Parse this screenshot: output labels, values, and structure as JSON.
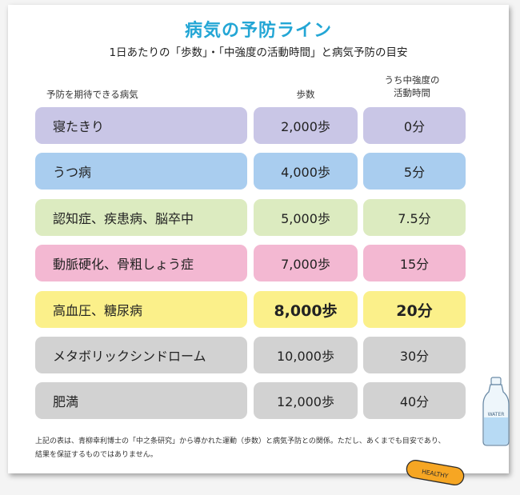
{
  "title": "病気の予防ライン",
  "subtitle": "1日あたりの「歩数」・「中強度の活動時間」と病気予防の目安",
  "headers": {
    "disease": "予防を期待できる病気",
    "steps": "歩数",
    "moderate_line1": "うち中強度の",
    "moderate_line2": "活動時間"
  },
  "rows": [
    {
      "disease": "寝たきり",
      "steps": "2,000歩",
      "moderate": "0分",
      "color": "#c9c6e6"
    },
    {
      "disease": "うつ病",
      "steps": "4,000歩",
      "moderate": "5分",
      "color": "#a9cdef"
    },
    {
      "disease": "認知症、疾患病、脳卒中",
      "steps": "5,000歩",
      "moderate": "7.5分",
      "color": "#dcebc0"
    },
    {
      "disease": "動脈硬化、骨粗しょう症",
      "steps": "7,000歩",
      "moderate": "15分",
      "color": "#f3b8d2"
    },
    {
      "disease": "高血圧、糖尿病",
      "steps": "8,000歩",
      "moderate": "20分",
      "color": "#fbf08a"
    },
    {
      "disease": "メタボリックシンドローム",
      "steps": "10,000歩",
      "moderate": "30分",
      "color": "#d2d2d2"
    },
    {
      "disease": "肥満",
      "steps": "12,000歩",
      "moderate": "40分",
      "color": "#d2d2d2"
    }
  ],
  "note_line1": "上記の表は、青柳幸利博士の「中之条研究」から導かれた運動（歩数）と病気予防との関係。ただし、あくまでも目安であり、",
  "note_line2": "結果を保証するものではありません。",
  "decorations": {
    "bottle_label": "WATER",
    "badge_text": "HEALTHY"
  },
  "accent_color": "#23a6d5"
}
